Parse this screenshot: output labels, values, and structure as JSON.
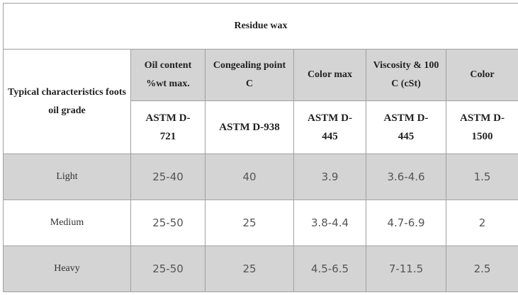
{
  "table": {
    "title": "Residue wax",
    "row_header": "Typical characteristics foots oil grade",
    "columns": [
      "Oil content %wt max.",
      "Congealing point C",
      "Color max",
      "Viscosity & 100 C (cSt)",
      "Color"
    ],
    "standards": [
      "ASTM D-721",
      "ASTM D-938",
      "ASTM D-445",
      "ASTM D-445",
      "ASTM D-1500"
    ],
    "rows": [
      [
        "Light",
        "25-40",
        "40",
        "3.9",
        "3.6-4.6",
        "1.5"
      ],
      [
        "Medium",
        "25-50",
        "25",
        "3.8-4.4",
        "4.7-6.9",
        "2"
      ],
      [
        "Heavy",
        "25-50",
        "25",
        "4.5-6.5",
        "7-11.5",
        "2.5"
      ]
    ]
  }
}
